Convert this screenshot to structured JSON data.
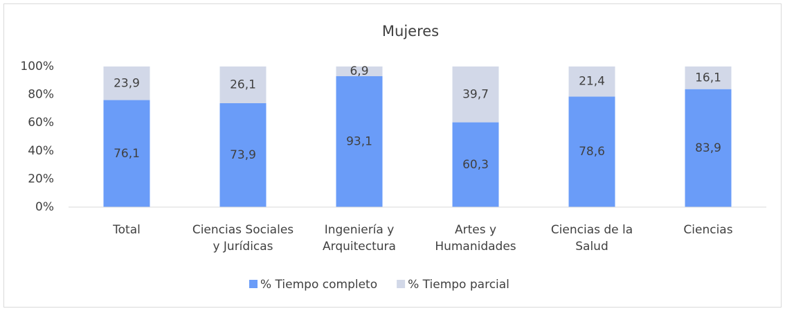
{
  "chart_data": {
    "type": "stacked_bar",
    "title": "Mujeres",
    "categories": [
      "Total",
      "Ciencias Sociales y Jurídicas",
      "Ingeniería y Arquitectura",
      "Artes y Humanidades",
      "Ciencias de la Salud",
      "Ciencias"
    ],
    "series": [
      {
        "name": "% Tiempo completo",
        "color": "#6a9cf8",
        "values": [
          76.1,
          73.9,
          93.1,
          60.3,
          78.6,
          83.9
        ],
        "value_labels": [
          "76,1",
          "73,9",
          "93,1",
          "60,3",
          "78,6",
          "83,9"
        ]
      },
      {
        "name": "% Tiempo parcial",
        "color": "#d2d8e8",
        "values": [
          23.9,
          26.1,
          6.9,
          39.7,
          21.4,
          16.1
        ],
        "value_labels": [
          "23,9",
          "26,1",
          "6,9",
          "39,7",
          "21,4",
          "16,1"
        ]
      }
    ],
    "ylim": [
      0,
      100
    ],
    "yticks": [
      {
        "value": 0,
        "label": "0%"
      },
      {
        "value": 20,
        "label": "20%"
      },
      {
        "value": 40,
        "label": "40%"
      },
      {
        "value": 60,
        "label": "60%"
      },
      {
        "value": 80,
        "label": "80%"
      },
      {
        "value": 100,
        "label": "100%"
      }
    ],
    "grid": false,
    "legend": "bottom"
  }
}
